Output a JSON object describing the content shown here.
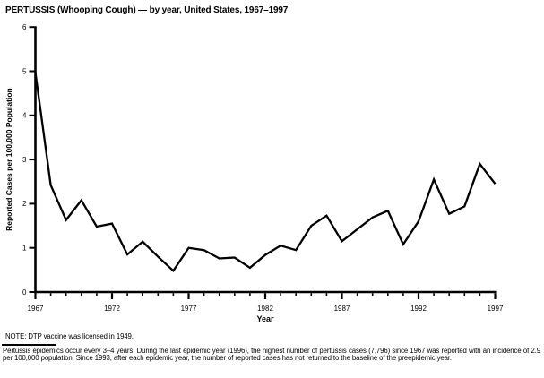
{
  "page": {
    "title": "PERTUSSIS (Whooping Cough) — by year, United States, 1967–1997",
    "note": "NOTE: DTP vaccine was licensed in 1949.",
    "footnote": "Pertussis epidemics occur every 3–4 years. During the last epidemic year (1996), the highest number of pertussis cases (7,796) since 1967 was reported with an incidence of 2.9 per 100,000 population. Since 1993, after each epidemic year, the number of reported cases has not returned to the baseline of the preepidemic year."
  },
  "chart_data": {
    "type": "line",
    "title": "PERTUSSIS (Whooping Cough) — by year, United States, 1967–1997",
    "xlabel": "Year",
    "ylabel": "Reported Cases per 100,000 Population",
    "x": [
      1967,
      1968,
      1969,
      1970,
      1971,
      1972,
      1973,
      1974,
      1975,
      1976,
      1977,
      1978,
      1979,
      1980,
      1981,
      1982,
      1983,
      1984,
      1985,
      1986,
      1987,
      1988,
      1989,
      1990,
      1991,
      1992,
      1993,
      1994,
      1995,
      1996,
      1997
    ],
    "values": [
      4.97,
      2.42,
      1.63,
      2.08,
      1.48,
      1.55,
      0.85,
      1.14,
      0.8,
      0.48,
      1.0,
      0.95,
      0.76,
      0.78,
      0.55,
      0.84,
      1.05,
      0.95,
      1.5,
      1.73,
      1.15,
      1.42,
      1.69,
      1.84,
      1.08,
      1.6,
      2.55,
      1.77,
      1.94,
      2.9,
      2.45
    ],
    "xlim": [
      1967,
      1997
    ],
    "ylim": [
      0,
      6
    ],
    "yticks": [
      0,
      1,
      2,
      3,
      4,
      5,
      6
    ],
    "xticks": [
      1967,
      1972,
      1977,
      1982,
      1987,
      1992,
      1997
    ],
    "grid": false,
    "legend": null,
    "line_color": "#000000"
  }
}
